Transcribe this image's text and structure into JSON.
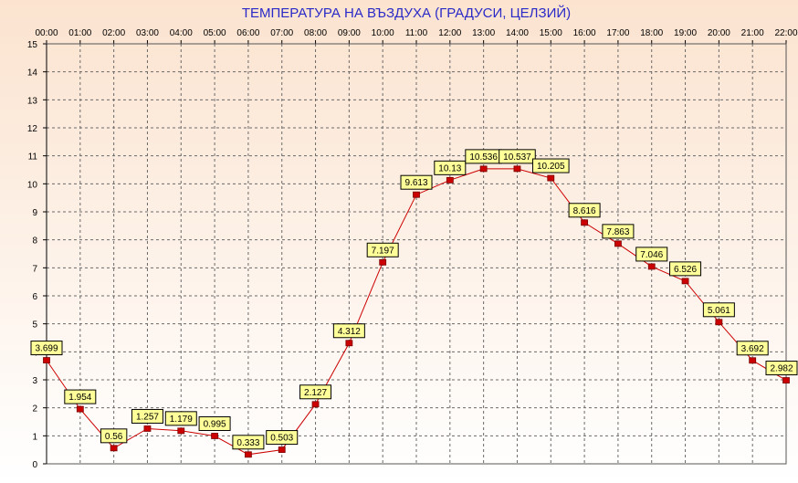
{
  "chart_data": {
    "type": "line",
    "title": "ТЕМПЕРАТУРА НА ВЪЗДУХА  (ГРАДУСИ, ЦЕЛЗИЙ)",
    "xlabel": "",
    "ylabel": "",
    "categories": [
      "00:00",
      "01:00",
      "02:00",
      "03:00",
      "04:00",
      "05:00",
      "06:00",
      "07:00",
      "08:00",
      "09:00",
      "10:00",
      "11:00",
      "12:00",
      "13:00",
      "14:00",
      "15:00",
      "16:00",
      "17:00",
      "18:00",
      "19:00",
      "20:00",
      "21:00",
      "22:00"
    ],
    "values": [
      3.699,
      1.954,
      0.56,
      1.257,
      1.179,
      0.995,
      0.333,
      0.503,
      2.127,
      4.312,
      7.197,
      9.613,
      10.13,
      10.536,
      10.537,
      10.205,
      8.616,
      7.863,
      7.046,
      6.526,
      5.061,
      3.692,
      2.982
    ],
    "value_labels": [
      "3.699",
      "1.954",
      "0.56",
      "1.257",
      "1.179",
      "0.995",
      "0.333",
      "0.503",
      "2.127",
      "4.312",
      "7.197",
      "9.613",
      "10.13",
      "10.536",
      "10.537",
      "10.205",
      "8.616",
      "7.863",
      "7.046",
      "6.526",
      "5.061",
      "3.692",
      "2.982"
    ],
    "ylim": [
      0,
      15
    ],
    "yticks": [
      "0",
      "1",
      "2",
      "3",
      "4",
      "5",
      "6",
      "7",
      "8",
      "9",
      "10",
      "11",
      "12",
      "13",
      "14",
      "15"
    ],
    "grid": true,
    "x_axis_position": "top",
    "colors": {
      "line": "#cc0000",
      "marker": "#cc0000",
      "label_bg": "#ffff99",
      "title": "#2a2ac8",
      "grid": "#6a6a6a",
      "bg_top": "#fbe3cf",
      "bg_bottom": "#ffffff"
    }
  }
}
